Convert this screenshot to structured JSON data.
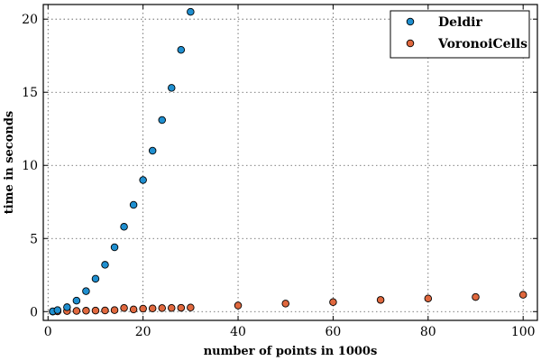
{
  "chart_data": {
    "type": "scatter",
    "xlabel": "number of points in 1000s",
    "ylabel": "time in seconds",
    "xlim": [
      -1,
      103
    ],
    "ylim": [
      -0.6,
      21
    ],
    "x_ticks": [
      0,
      20,
      40,
      60,
      80,
      100
    ],
    "y_ticks": [
      0,
      5,
      10,
      15,
      20
    ],
    "grid": true,
    "legend_position": "top-right",
    "series": [
      {
        "name": "Deldir",
        "color": "#1f8fd0",
        "x": [
          1,
          2,
          4,
          6,
          8,
          10,
          12,
          14,
          16,
          18,
          20,
          22,
          24,
          26,
          28,
          30
        ],
        "y": [
          0.02,
          0.1,
          0.3,
          0.75,
          1.4,
          2.25,
          3.2,
          4.4,
          5.8,
          7.3,
          9.0,
          11.0,
          13.1,
          15.3,
          17.9,
          20.5
        ]
      },
      {
        "name": "VoronoiCells",
        "color": "#e0683e",
        "x": [
          1,
          2,
          4,
          6,
          8,
          10,
          12,
          14,
          16,
          18,
          20,
          22,
          24,
          26,
          28,
          30,
          40,
          50,
          60,
          70,
          80,
          90,
          100
        ],
        "y": [
          0.0,
          0.02,
          0.04,
          0.05,
          0.06,
          0.07,
          0.08,
          0.1,
          0.25,
          0.15,
          0.2,
          0.22,
          0.24,
          0.25,
          0.26,
          0.28,
          0.42,
          0.55,
          0.65,
          0.8,
          0.9,
          1.0,
          1.15
        ]
      }
    ]
  }
}
